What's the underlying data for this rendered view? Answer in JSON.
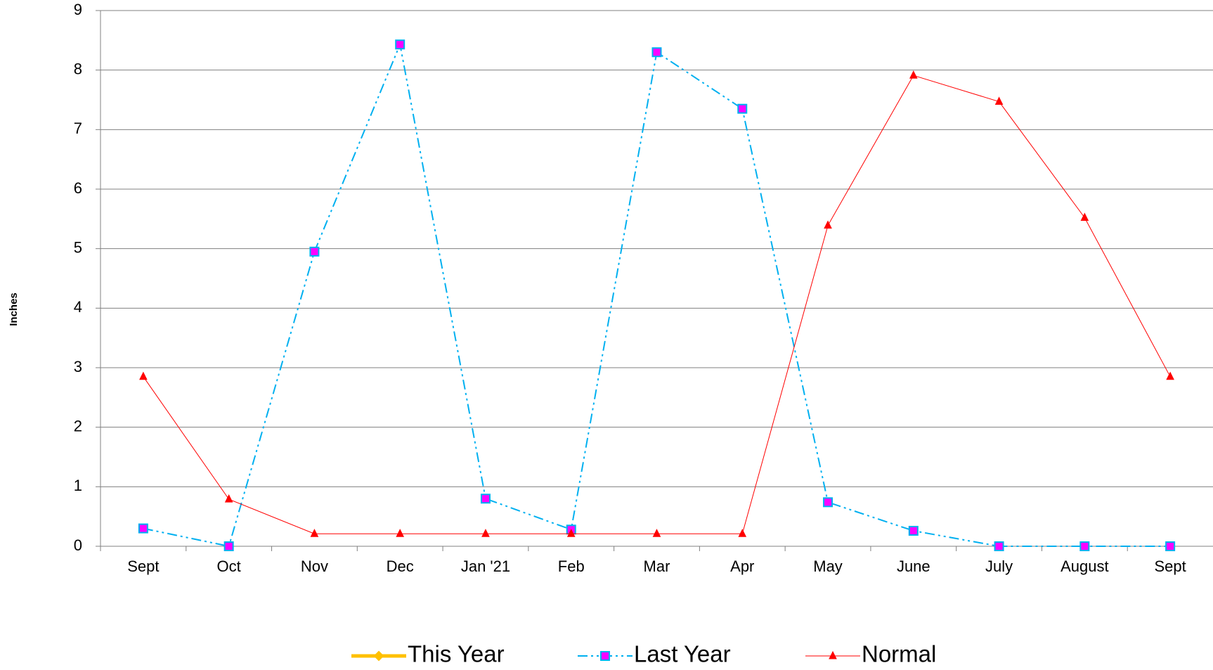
{
  "chart_data": {
    "type": "line",
    "y_label": "Inches",
    "categories": [
      "Sept",
      "Oct",
      "Nov",
      "Dec",
      "Jan '21",
      "Feb",
      "Mar",
      "Apr",
      "May",
      "June",
      "July",
      "August",
      "Sept"
    ],
    "series": [
      {
        "name": "This Year",
        "color": "#ffc000",
        "values": [
          null,
          null,
          null,
          null,
          null,
          null,
          null,
          null,
          null,
          null,
          null,
          null,
          null
        ]
      },
      {
        "name": "Last Year",
        "color": "#00b0f0",
        "values": [
          0.3,
          0,
          4.95,
          8.43,
          0.8,
          0.28,
          8.3,
          7.35,
          0.74,
          0.26,
          0,
          0,
          0
        ]
      },
      {
        "name": "Normal",
        "color": "#ff0000",
        "values": [
          2.85,
          0.79,
          0.21,
          0.21,
          0.21,
          0.21,
          0.21,
          0.21,
          5.39,
          7.91,
          7.47,
          5.52,
          2.85
        ]
      }
    ],
    "ylim": [
      0,
      9
    ],
    "yticks": [
      0,
      1,
      2,
      3,
      4,
      5,
      6,
      7,
      8,
      9
    ],
    "grid": true
  }
}
